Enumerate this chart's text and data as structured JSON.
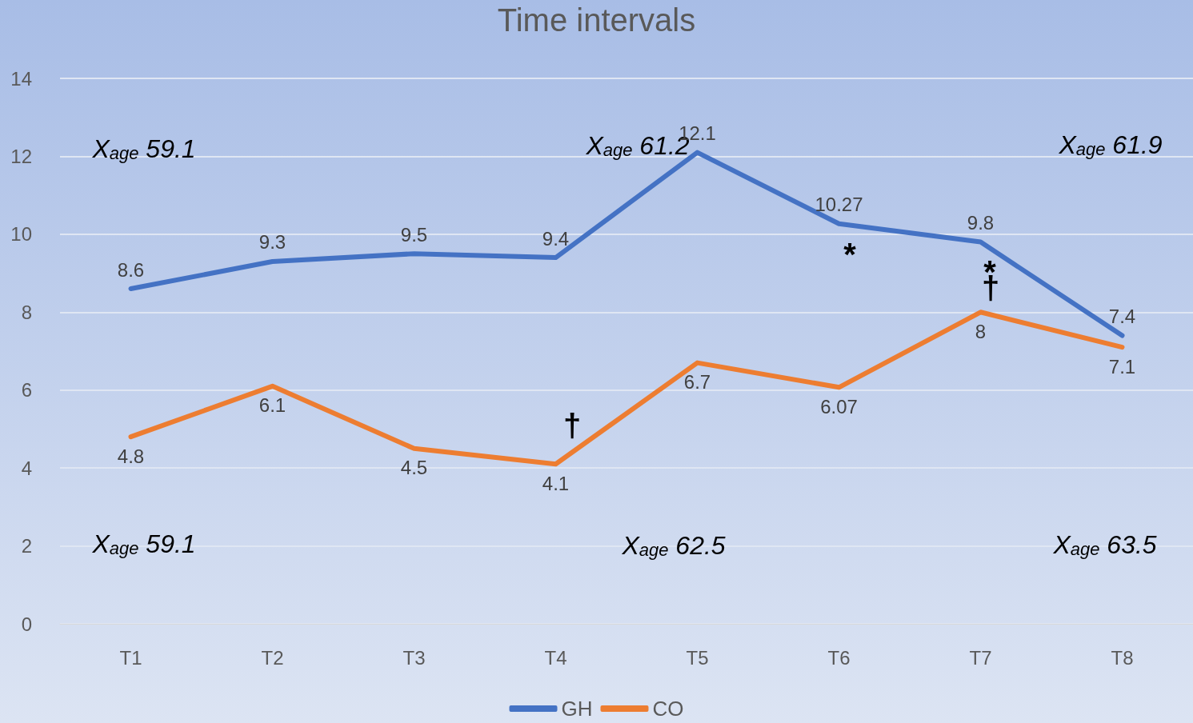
{
  "chart_data": {
    "type": "line",
    "title": "Time intervals",
    "categories": [
      "T1",
      "T2",
      "T3",
      "T4",
      "T5",
      "T6",
      "T7",
      "T8"
    ],
    "series": [
      {
        "name": "GH",
        "color": "#4472c4",
        "values": [
          8.6,
          9.3,
          9.5,
          9.4,
          12.1,
          10.27,
          9.8,
          7.4
        ]
      },
      {
        "name": "CO",
        "color": "#ed7d31",
        "values": [
          4.8,
          6.1,
          4.5,
          4.1,
          6.7,
          6.07,
          8,
          7.1
        ]
      }
    ],
    "ylim": [
      0,
      14
    ],
    "yticks": [
      0,
      2,
      4,
      6,
      8,
      10,
      12,
      14
    ],
    "grid": "y",
    "legend": "bottom",
    "marker": "none",
    "data_labels": true,
    "annotations": [
      "X$_{age}$ 59.1",
      "X$_{age}$ 61.2",
      "X$_{age}$ 61.9",
      "X$_{age}$ 59.1",
      "X$_{age}$ 62.5",
      "X$_{age}$ 63.5",
      "*",
      "*",
      "†",
      "†"
    ]
  }
}
